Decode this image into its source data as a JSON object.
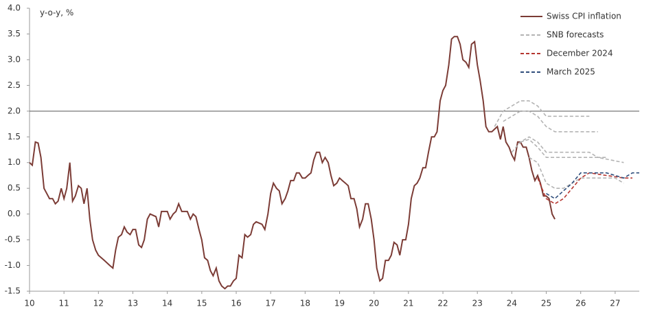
{
  "chart_data": {
    "type": "line",
    "axis_label": "y-o-y, %",
    "xlim": [
      10,
      27.7
    ],
    "xticks": [
      10,
      11,
      12,
      13,
      14,
      15,
      16,
      17,
      18,
      19,
      20,
      21,
      22,
      23,
      24,
      25,
      26,
      27
    ],
    "ylim": [
      -1.5,
      4.0
    ],
    "yticks": [
      -1.5,
      {
        "value": -1,
        "label": "-1.0"
      },
      -0.5,
      {
        "value": 0,
        "label": "0.0"
      },
      0.5,
      {
        "value": 1,
        "label": "1.0"
      },
      1.5,
      {
        "value": 2,
        "label": "2.0"
      },
      2.5,
      {
        "value": 3,
        "label": "3.0"
      },
      3.5,
      {
        "value": 4,
        "label": "4.0"
      }
    ],
    "hline": 2,
    "legend": "upper right",
    "series": [
      {
        "name": "Swiss CPI inflation",
        "color": "#7b3b35",
        "dash": false,
        "lines": [
          {
            "x": [
              10.0,
              10.08,
              10.17,
              10.25,
              10.33,
              10.42,
              10.5,
              10.58,
              10.67,
              10.75,
              10.83,
              10.92,
              11.0,
              11.08,
              11.17,
              11.25,
              11.33,
              11.42,
              11.5,
              11.58,
              11.67,
              11.75,
              11.83,
              11.92,
              12.0,
              12.17,
              12.33,
              12.42,
              12.5,
              12.58,
              12.67,
              12.75,
              12.83,
              12.92,
              13.0,
              13.08,
              13.17,
              13.25,
              13.33,
              13.42,
              13.5,
              13.67,
              13.75,
              13.83,
              14.0,
              14.08,
              14.17,
              14.25,
              14.33,
              14.42,
              14.5,
              14.58,
              14.67,
              14.75,
              14.83,
              14.92,
              15.0,
              15.08,
              15.17,
              15.25,
              15.33,
              15.42,
              15.5,
              15.58,
              15.67,
              15.75,
              15.83,
              15.92,
              16.0,
              16.08,
              16.17,
              16.25,
              16.33,
              16.42,
              16.5,
              16.58,
              16.75,
              16.83,
              16.92,
              17.0,
              17.08,
              17.17,
              17.25,
              17.33,
              17.42,
              17.5,
              17.58,
              17.67,
              17.75,
              17.83,
              17.92,
              18.0,
              18.08,
              18.17,
              18.25,
              18.33,
              18.42,
              18.5,
              18.58,
              18.67,
              18.75,
              18.83,
              18.92,
              19.0,
              19.08,
              19.17,
              19.25,
              19.33,
              19.42,
              19.5,
              19.58,
              19.67,
              19.75,
              19.83,
              19.92,
              20.0,
              20.08,
              20.17,
              20.25,
              20.33,
              20.42,
              20.5,
              20.58,
              20.67,
              20.75,
              20.83,
              20.92,
              21.0,
              21.08,
              21.17,
              21.25,
              21.33,
              21.42,
              21.5,
              21.58,
              21.67,
              21.75,
              21.83,
              21.92,
              22.0,
              22.08,
              22.17,
              22.25,
              22.33,
              22.42,
              22.5,
              22.58,
              22.67,
              22.75,
              22.83,
              22.92,
              23.0,
              23.08,
              23.17,
              23.25,
              23.33,
              23.42,
              23.5,
              23.58,
              23.67,
              23.75,
              23.83,
              23.92,
              24.0,
              24.08,
              24.17,
              24.25,
              24.33,
              24.42,
              24.5,
              24.58,
              24.67,
              24.75,
              24.83,
              24.92,
              25.0,
              25.08,
              25.17,
              25.25
            ],
            "values": [
              1.0,
              0.95,
              1.4,
              1.38,
              1.1,
              0.5,
              0.4,
              0.3,
              0.3,
              0.2,
              0.25,
              0.5,
              0.3,
              0.5,
              1.0,
              0.25,
              0.35,
              0.55,
              0.5,
              0.2,
              0.5,
              -0.1,
              -0.5,
              -0.7,
              -0.8,
              -0.9,
              -1.0,
              -1.05,
              -0.7,
              -0.45,
              -0.4,
              -0.25,
              -0.35,
              -0.4,
              -0.3,
              -0.3,
              -0.6,
              -0.65,
              -0.5,
              -0.1,
              0.0,
              -0.05,
              -0.25,
              0.05,
              0.05,
              -0.1,
              0.0,
              0.05,
              0.2,
              0.05,
              0.05,
              0.05,
              -0.1,
              0.0,
              -0.05,
              -0.3,
              -0.5,
              -0.85,
              -0.9,
              -1.1,
              -1.2,
              -1.05,
              -1.3,
              -1.4,
              -1.45,
              -1.4,
              -1.4,
              -1.3,
              -1.25,
              -0.8,
              -0.85,
              -0.4,
              -0.45,
              -0.4,
              -0.2,
              -0.15,
              -0.2,
              -0.3,
              0.0,
              0.4,
              0.6,
              0.5,
              0.45,
              0.2,
              0.3,
              0.45,
              0.65,
              0.65,
              0.8,
              0.8,
              0.7,
              0.7,
              0.75,
              0.8,
              1.05,
              1.2,
              1.2,
              1.0,
              1.1,
              1.0,
              0.75,
              0.55,
              0.6,
              0.7,
              0.65,
              0.6,
              0.55,
              0.3,
              0.3,
              0.1,
              -0.25,
              -0.1,
              0.2,
              0.2,
              -0.1,
              -0.5,
              -1.05,
              -1.3,
              -1.25,
              -0.9,
              -0.9,
              -0.8,
              -0.55,
              -0.6,
              -0.8,
              -0.5,
              -0.5,
              -0.2,
              0.3,
              0.55,
              0.6,
              0.7,
              0.9,
              0.9,
              1.2,
              1.5,
              1.5,
              1.6,
              2.2,
              2.4,
              2.5,
              2.9,
              3.4,
              3.45,
              3.45,
              3.3,
              3.0,
              2.95,
              2.85,
              3.3,
              3.35,
              2.9,
              2.6,
              2.2,
              1.7,
              1.6,
              1.6,
              1.65,
              1.7,
              1.45,
              1.7,
              1.4,
              1.3,
              1.15,
              1.05,
              1.4,
              1.4,
              1.3,
              1.3,
              1.1,
              0.85,
              0.65,
              0.75,
              0.6,
              0.35,
              0.35,
              0.3,
              0.0,
              -0.1
            ]
          }
        ]
      },
      {
        "name": "SNB forecasts",
        "color": "#b3b3b3",
        "dash": true,
        "lines": [
          {
            "x": [
              23.5,
              23.75,
              24.0,
              24.25,
              24.5,
              24.75,
              25.0,
              25.5,
              26.25
            ],
            "values": [
              1.7,
              2.0,
              2.1,
              2.2,
              2.2,
              2.1,
              1.9,
              1.9,
              1.9
            ]
          },
          {
            "x": [
              23.75,
              24.0,
              24.25,
              24.5,
              24.75,
              25.0,
              25.25,
              26.5
            ],
            "values": [
              1.8,
              1.9,
              2.0,
              2.0,
              1.9,
              1.7,
              1.6,
              1.6
            ]
          },
          {
            "x": [
              24.0,
              24.25,
              24.5,
              24.75,
              25.0,
              26.25,
              26.5,
              26.75
            ],
            "values": [
              1.2,
              1.4,
              1.5,
              1.4,
              1.2,
              1.2,
              1.1,
              1.1
            ]
          },
          {
            "x": [
              24.25,
              24.5,
              24.75,
              25.0,
              26.5,
              27.25
            ],
            "values": [
              1.4,
              1.45,
              1.3,
              1.1,
              1.1,
              1.0
            ]
          },
          {
            "x": [
              24.5,
              24.75,
              25.0,
              25.25,
              25.5,
              25.75,
              26.0,
              27.0,
              27.25
            ],
            "values": [
              1.1,
              1.0,
              0.6,
              0.5,
              0.5,
              0.6,
              0.7,
              0.7,
              0.6
            ]
          }
        ]
      },
      {
        "name": "December 2024",
        "color": "#b5352f",
        "dash": true,
        "lines": [
          {
            "x": [
              24.75,
              25.0,
              25.25,
              25.5,
              25.75,
              26.0,
              26.25,
              26.75,
              27.25,
              27.5
            ],
            "values": [
              0.7,
              0.3,
              0.2,
              0.3,
              0.5,
              0.7,
              0.8,
              0.75,
              0.7,
              0.7
            ]
          }
        ]
      },
      {
        "name": "March 2025",
        "color": "#2e4d7b",
        "dash": true,
        "lines": [
          {
            "x": [
              25.0,
              25.25,
              25.5,
              25.75,
              26.0,
              26.75,
              27.25,
              27.5,
              27.7
            ],
            "values": [
              0.4,
              0.3,
              0.45,
              0.6,
              0.8,
              0.8,
              0.7,
              0.8,
              0.8
            ]
          }
        ]
      }
    ]
  }
}
